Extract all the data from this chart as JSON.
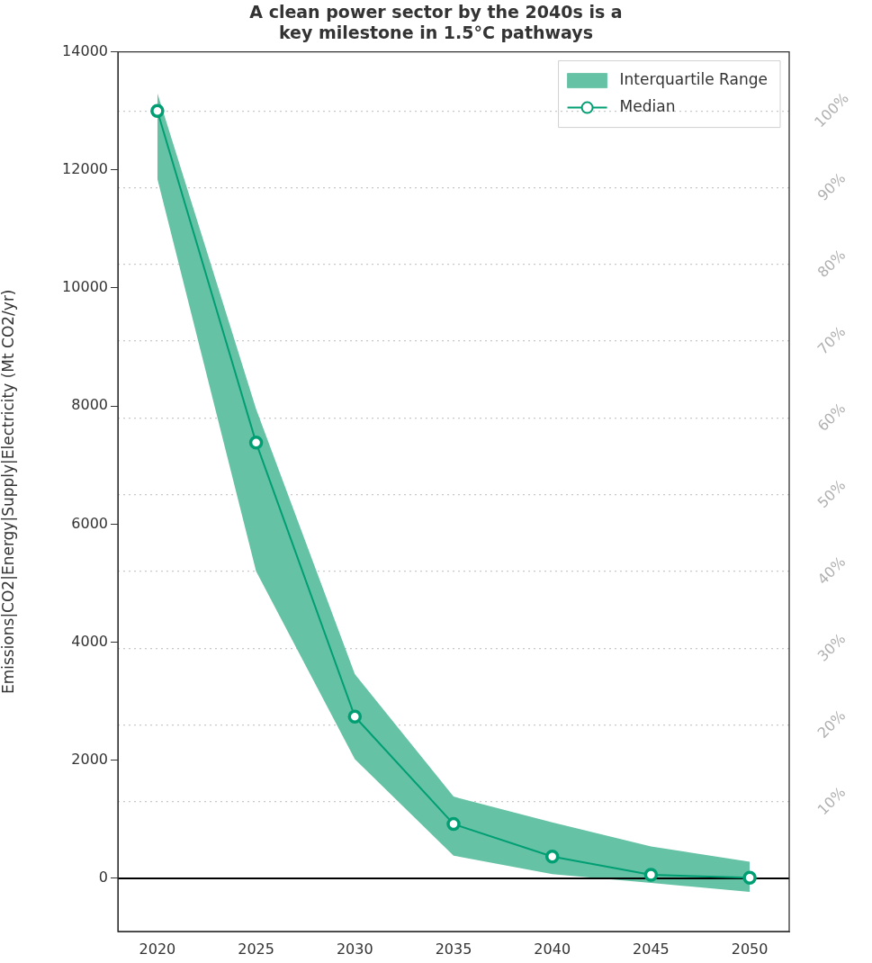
{
  "chart_data": {
    "type": "line",
    "title": "A clean power sector by the 2040s is a\nkey milestone in 1.5°C pathways",
    "ylabel": "Emissions|CO2|Energy|Supply|Electricity (Mt CO2/yr)",
    "x": [
      2020,
      2025,
      2030,
      2035,
      2040,
      2045,
      2050
    ],
    "series": [
      {
        "name": "Interquartile Range",
        "type": "area",
        "color": "#66c2a5",
        "values": [
          null,
          null,
          null,
          null,
          null,
          null,
          null
        ],
        "lower": [
          11850,
          5200,
          2020,
          385,
          70,
          -75,
          -230
        ],
        "upper": [
          13300,
          7950,
          3460,
          1385,
          950,
          540,
          280
        ]
      },
      {
        "name": "Median",
        "type": "line",
        "color": "#009e73",
        "values": [
          13000,
          7380,
          2740,
          920,
          370,
          60,
          10
        ]
      }
    ],
    "marker": "circle",
    "xlim": [
      2018,
      2052
    ],
    "xticks": [
      2020,
      2025,
      2030,
      2035,
      2040,
      2045,
      2050
    ],
    "ylim": [
      -900,
      14000
    ],
    "yticks": [
      0,
      2000,
      4000,
      6000,
      8000,
      10000,
      12000,
      14000
    ],
    "y2lim": [
      -6.9,
      107.7
    ],
    "y2ticks": [
      {
        "value": 10,
        "label": "10%"
      },
      {
        "value": 20,
        "label": "20%"
      },
      {
        "value": 30,
        "label": "30%"
      },
      {
        "value": 40,
        "label": "40%"
      },
      {
        "value": 50,
        "label": "50%"
      },
      {
        "value": 60,
        "label": "60%"
      },
      {
        "value": 70,
        "label": "70%"
      },
      {
        "value": 80,
        "label": "80%"
      },
      {
        "value": 90,
        "label": "90%"
      },
      {
        "value": 100,
        "label": "100%"
      }
    ],
    "ref_lines": [
      {
        "axis": "y",
        "value": 0,
        "color": "#000000"
      }
    ],
    "grid": "y2",
    "legend": "top right"
  }
}
